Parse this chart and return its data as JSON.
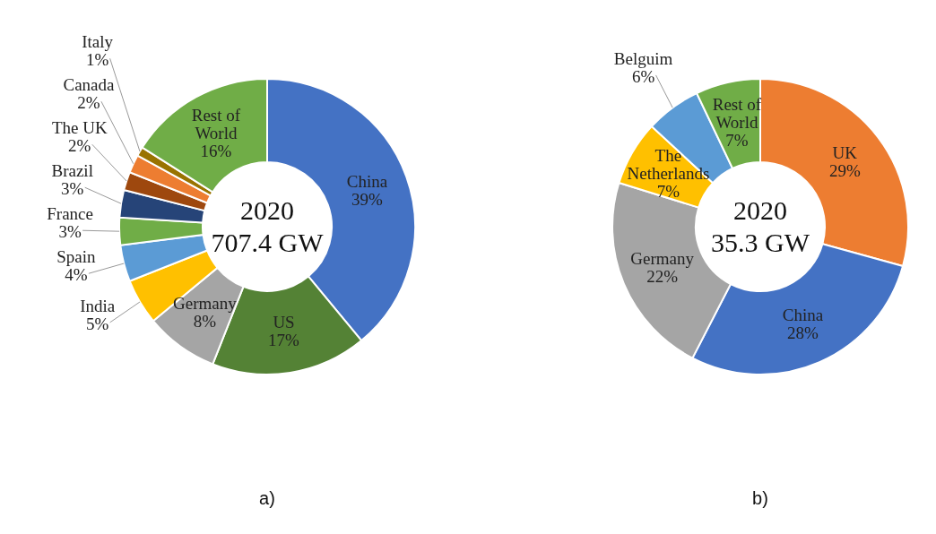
{
  "chart_data": [
    {
      "type": "donut",
      "title": "a)",
      "annotations": [
        "2020",
        "707.4 GW"
      ],
      "categories": [
        "China",
        "US",
        "Germany",
        "India",
        "Spain",
        "France",
        "Brazil",
        "The UK",
        "Canada",
        "Italy",
        "Rest of World"
      ],
      "values": [
        39,
        17,
        8,
        5,
        4,
        3,
        3,
        2,
        2,
        1,
        16
      ],
      "value_labels": [
        "39%",
        "17%",
        "8%",
        "5%",
        "4%",
        "3%",
        "3%",
        "2%",
        "2%",
        "1%",
        "16%"
      ],
      "colors": [
        "#4472c4",
        "#548235",
        "#a5a5a5",
        "#ffc000",
        "#5b9bd5",
        "#70ad47",
        "#264478",
        "#9e480e",
        "#ed7d31",
        "#997300",
        "#70ad47"
      ]
    },
    {
      "type": "donut",
      "title": "b)",
      "annotations": [
        "2020",
        "35.3 GW"
      ],
      "categories": [
        "UK",
        "China",
        "Germany",
        "The Netherlands",
        "Belguim",
        "Rest of World"
      ],
      "values": [
        29,
        28,
        22,
        7,
        6,
        7
      ],
      "value_labels": [
        "29%",
        "28%",
        "22%",
        "7%",
        "6%",
        "7%"
      ],
      "colors": [
        "#ed7d31",
        "#4472c4",
        "#a5a5a5",
        "#ffc000",
        "#5b9bd5",
        "#70ad47"
      ]
    }
  ]
}
